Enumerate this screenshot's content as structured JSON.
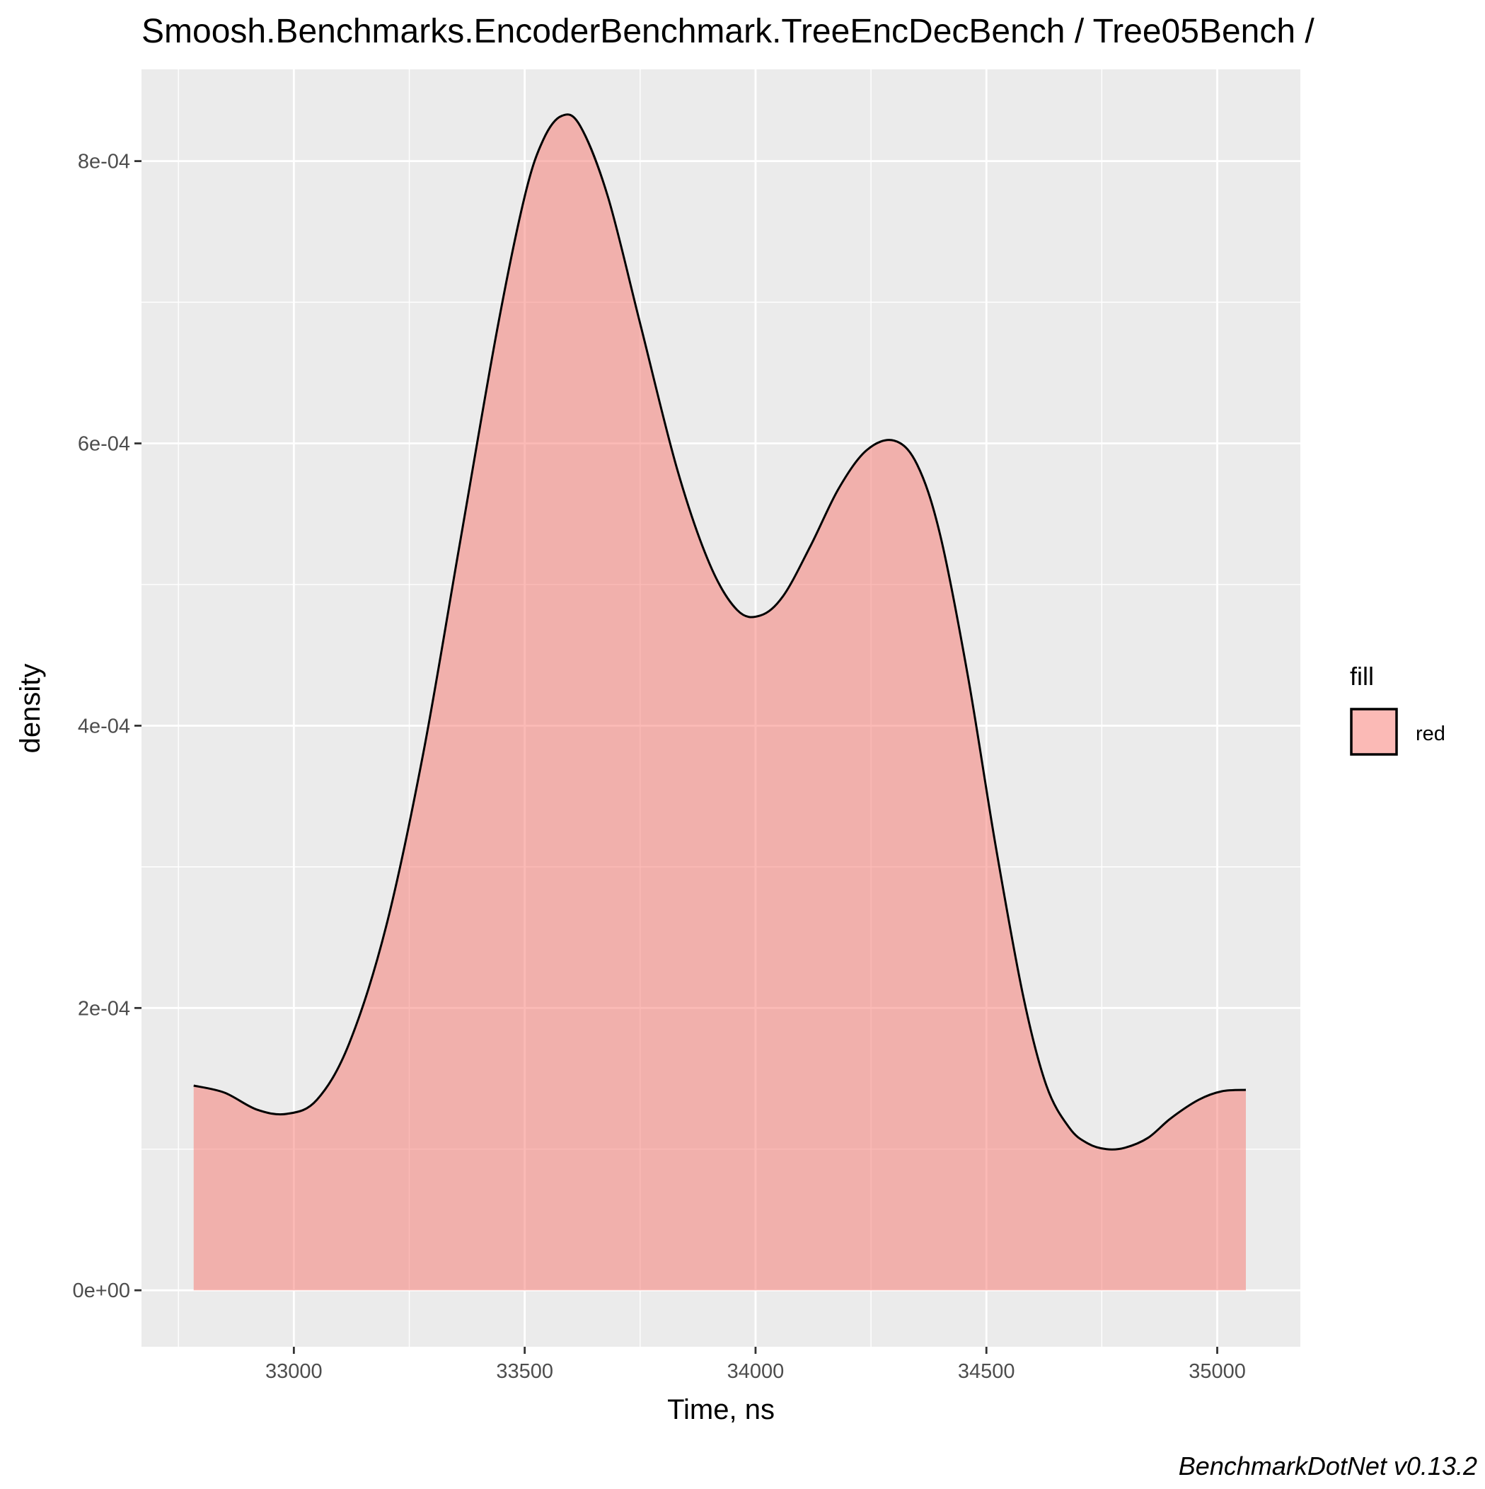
{
  "chart_data": {
    "type": "area",
    "title": "Smoosh.Benchmarks.EncoderBenchmark.TreeEncDecBench / Tree05Bench /",
    "xlabel": "Time, ns",
    "ylabel": "density",
    "caption": "BenchmarkDotNet v0.13.2",
    "xlim": [
      32670,
      35180
    ],
    "ylim": [
      -4e-05,
      0.000865
    ],
    "x_ticks": [
      33000,
      33500,
      34000,
      34500,
      35000
    ],
    "x_tick_labels": [
      "33000",
      "33500",
      "34000",
      "34500",
      "35000"
    ],
    "y_ticks": [
      0,
      0.0002,
      0.0004,
      0.0006,
      0.0008
    ],
    "y_tick_labels": [
      "0e+00",
      "2e-04",
      "4e-04",
      "6e-04",
      "8e-04"
    ],
    "grid": true,
    "legend": {
      "title": "fill",
      "position": "right",
      "entries": [
        {
          "label": "red",
          "color": "#f8766d"
        }
      ]
    },
    "fill_color": "#f8766d",
    "line_color": "#000000",
    "panel_color": "#ebebeb",
    "series": [
      {
        "x": [
          32783,
          32850,
          32920,
          32985,
          33050,
          33120,
          33200,
          33280,
          33360,
          33440,
          33500,
          33540,
          33580,
          33620,
          33680,
          33750,
          33830,
          33900,
          33960,
          34010,
          34060,
          34120,
          34180,
          34240,
          34300,
          34350,
          34400,
          34460,
          34520,
          34580,
          34630,
          34680,
          34720,
          34760,
          34800,
          34850,
          34900,
          34960,
          35010,
          35062
        ],
        "values": [
          0.000145,
          0.00014,
          0.000128,
          0.000125,
          0.000135,
          0.000175,
          0.000258,
          0.00038,
          0.00053,
          0.00068,
          0.000775,
          0.000815,
          0.000832,
          0.000825,
          0.000775,
          0.000685,
          0.000582,
          0.000515,
          0.000482,
          0.000478,
          0.000492,
          0.000528,
          0.000568,
          0.000595,
          0.000602,
          0.000585,
          0.000535,
          0.000435,
          0.000315,
          0.000208,
          0.000145,
          0.000115,
          0.000104,
          0.0001,
          0.000101,
          0.000108,
          0.000122,
          0.000135,
          0.000141,
          0.000142
        ]
      }
    ]
  }
}
